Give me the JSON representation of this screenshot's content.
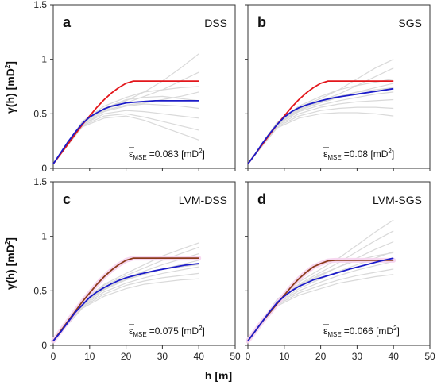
{
  "figure": {
    "ylabel": "γ(h) [mD²]",
    "ylabel_main": "γ(h) [mD",
    "ylabel_sup": "2",
    "ylabel_end": "]",
    "xlabel": "h [m]"
  },
  "chart_data": [
    {
      "type": "line",
      "panel": "a",
      "method": "DSS",
      "error": {
        "symbol": "ε",
        "sub": "MSE",
        "value": "=0.083",
        "unit_main": "[mD",
        "unit_sup": "2",
        "unit_end": "]"
      },
      "xlim": [
        0,
        50
      ],
      "ylim": [
        0,
        1.5
      ],
      "xticks": [
        "0",
        "10",
        "20",
        "30",
        "40",
        "50"
      ],
      "yticks": [
        "0",
        "0.5",
        "1",
        "1.5"
      ],
      "colors": {
        "reference": "#e3161b",
        "mean": "#1c1cc9",
        "realizations": "#d9d9d9"
      },
      "reference": {
        "x": [
          0,
          2,
          4,
          6,
          8,
          10,
          12,
          14,
          16,
          18,
          20,
          22,
          24,
          26,
          30,
          35,
          40
        ],
        "y": [
          0.04,
          0.13,
          0.22,
          0.31,
          0.4,
          0.48,
          0.56,
          0.63,
          0.69,
          0.74,
          0.78,
          0.8,
          0.8,
          0.8,
          0.8,
          0.8,
          0.8
        ]
      },
      "mean": {
        "x": [
          0,
          2,
          4,
          6,
          8,
          10,
          12,
          14,
          16,
          18,
          20,
          22,
          24,
          26,
          28,
          30,
          33,
          36,
          40
        ],
        "y": [
          0.04,
          0.14,
          0.24,
          0.33,
          0.41,
          0.47,
          0.51,
          0.545,
          0.57,
          0.585,
          0.6,
          0.605,
          0.61,
          0.615,
          0.62,
          0.62,
          0.62,
          0.62,
          0.62
        ]
      },
      "realizations": [
        {
          "x": [
            0,
            8,
            14,
            20,
            25,
            30,
            35,
            40
          ],
          "y": [
            0.04,
            0.42,
            0.55,
            0.62,
            0.7,
            0.8,
            0.92,
            1.05
          ]
        },
        {
          "x": [
            0,
            8,
            14,
            20,
            25,
            30,
            35,
            40
          ],
          "y": [
            0.04,
            0.41,
            0.54,
            0.6,
            0.66,
            0.72,
            0.8,
            0.88
          ]
        },
        {
          "x": [
            0,
            8,
            14,
            20,
            25,
            30,
            35,
            40
          ],
          "y": [
            0.04,
            0.42,
            0.53,
            0.58,
            0.6,
            0.63,
            0.66,
            0.7
          ]
        },
        {
          "x": [
            0,
            8,
            14,
            20,
            25,
            30,
            35,
            40
          ],
          "y": [
            0.04,
            0.4,
            0.52,
            0.57,
            0.59,
            0.58,
            0.57,
            0.55
          ]
        },
        {
          "x": [
            0,
            8,
            14,
            20,
            25,
            30,
            35,
            40
          ],
          "y": [
            0.04,
            0.4,
            0.5,
            0.53,
            0.52,
            0.5,
            0.48,
            0.46
          ]
        },
        {
          "x": [
            0,
            8,
            14,
            20,
            25,
            30,
            35,
            40
          ],
          "y": [
            0.04,
            0.39,
            0.48,
            0.5,
            0.47,
            0.43,
            0.39,
            0.35
          ]
        },
        {
          "x": [
            0,
            8,
            14,
            20,
            25,
            30,
            35,
            40
          ],
          "y": [
            0.04,
            0.38,
            0.46,
            0.48,
            0.44,
            0.38,
            0.32,
            0.26
          ]
        },
        {
          "x": [
            0,
            8,
            14,
            20,
            25,
            30,
            35,
            40
          ],
          "y": [
            0.04,
            0.43,
            0.57,
            0.65,
            0.7,
            0.72,
            0.74,
            0.75
          ]
        },
        {
          "x": [
            0,
            8,
            14,
            20,
            25,
            30,
            35,
            40
          ],
          "y": [
            0.04,
            0.41,
            0.55,
            0.63,
            0.65,
            0.66,
            0.64,
            0.62
          ]
        }
      ]
    },
    {
      "type": "line",
      "panel": "b",
      "method": "SGS",
      "error": {
        "symbol": "ε",
        "sub": "MSE",
        "value": "=0.08",
        "unit_main": "[mD",
        "unit_sup": "2",
        "unit_end": "]"
      },
      "xlim": [
        0,
        50
      ],
      "ylim": [
        0,
        1.5
      ],
      "xticks": [
        "0",
        "10",
        "20",
        "30",
        "40",
        "50"
      ],
      "yticks": [
        "0",
        "0.5",
        "1",
        "1.5"
      ],
      "colors": {
        "reference": "#e3161b",
        "mean": "#1c1cc9",
        "realizations": "#d9d9d9"
      },
      "reference": {
        "x": [
          0,
          2,
          4,
          6,
          8,
          10,
          12,
          14,
          16,
          18,
          20,
          22,
          24,
          26,
          30,
          35,
          40
        ],
        "y": [
          0.04,
          0.13,
          0.22,
          0.31,
          0.4,
          0.48,
          0.56,
          0.63,
          0.69,
          0.74,
          0.78,
          0.8,
          0.8,
          0.8,
          0.8,
          0.8,
          0.8
        ]
      },
      "mean": {
        "x": [
          0,
          2,
          4,
          6,
          8,
          10,
          12,
          14,
          16,
          18,
          20,
          24,
          28,
          32,
          36,
          40
        ],
        "y": [
          0.04,
          0.13,
          0.23,
          0.32,
          0.4,
          0.47,
          0.52,
          0.555,
          0.58,
          0.6,
          0.62,
          0.65,
          0.67,
          0.69,
          0.71,
          0.73
        ]
      },
      "realizations": [
        {
          "x": [
            0,
            8,
            14,
            20,
            25,
            30,
            35,
            40
          ],
          "y": [
            0.04,
            0.42,
            0.56,
            0.64,
            0.72,
            0.82,
            0.92,
            1.0
          ]
        },
        {
          "x": [
            0,
            8,
            14,
            20,
            25,
            30,
            35,
            40
          ],
          "y": [
            0.04,
            0.41,
            0.55,
            0.62,
            0.68,
            0.76,
            0.84,
            0.92
          ]
        },
        {
          "x": [
            0,
            8,
            14,
            20,
            25,
            30,
            35,
            40
          ],
          "y": [
            0.04,
            0.4,
            0.53,
            0.6,
            0.65,
            0.7,
            0.74,
            0.78
          ]
        },
        {
          "x": [
            0,
            8,
            14,
            20,
            25,
            30,
            35,
            40
          ],
          "y": [
            0.04,
            0.4,
            0.52,
            0.58,
            0.62,
            0.65,
            0.68,
            0.7
          ]
        },
        {
          "x": [
            0,
            8,
            14,
            20,
            25,
            30,
            35,
            40
          ],
          "y": [
            0.04,
            0.39,
            0.5,
            0.56,
            0.59,
            0.61,
            0.62,
            0.63
          ]
        },
        {
          "x": [
            0,
            8,
            14,
            20,
            25,
            30,
            35,
            40
          ],
          "y": [
            0.04,
            0.38,
            0.48,
            0.53,
            0.55,
            0.56,
            0.56,
            0.55
          ]
        },
        {
          "x": [
            0,
            8,
            14,
            20,
            25,
            30,
            35,
            40
          ],
          "y": [
            0.04,
            0.37,
            0.46,
            0.5,
            0.51,
            0.51,
            0.5,
            0.48
          ]
        },
        {
          "x": [
            0,
            8,
            14,
            20,
            25,
            30,
            35,
            40
          ],
          "y": [
            0.04,
            0.42,
            0.57,
            0.66,
            0.72,
            0.76,
            0.79,
            0.82
          ]
        },
        {
          "x": [
            0,
            8,
            14,
            20,
            25,
            30,
            35,
            40
          ],
          "y": [
            0.04,
            0.41,
            0.54,
            0.61,
            0.66,
            0.7,
            0.72,
            0.74
          ]
        }
      ]
    },
    {
      "type": "line",
      "panel": "c",
      "method": "LVM-DSS",
      "error": {
        "symbol": "ε",
        "sub": "MSE",
        "value": "=0.075",
        "unit_main": "[mD",
        "unit_sup": "2",
        "unit_end": "]"
      },
      "xlim": [
        0,
        50
      ],
      "ylim": [
        0,
        1.5
      ],
      "xticks": [
        "0",
        "10",
        "20",
        "30",
        "40",
        "50"
      ],
      "yticks": [
        "0",
        "0.5",
        "1",
        "1.5"
      ],
      "colors": {
        "reference": "#8b3a1a",
        "mean": "#1c1cc9",
        "realizations": "#d9d9d9",
        "band": "#f6d3ee"
      },
      "reference": {
        "x": [
          0,
          2,
          4,
          6,
          8,
          10,
          12,
          14,
          16,
          18,
          20,
          22,
          24,
          26,
          30,
          35,
          40
        ],
        "y": [
          0.04,
          0.13,
          0.22,
          0.31,
          0.4,
          0.48,
          0.56,
          0.63,
          0.69,
          0.74,
          0.78,
          0.8,
          0.8,
          0.8,
          0.8,
          0.8,
          0.8
        ]
      },
      "mean": {
        "x": [
          0,
          2,
          4,
          6,
          8,
          10,
          12,
          14,
          16,
          18,
          20,
          24,
          28,
          32,
          36,
          40
        ],
        "y": [
          0.04,
          0.12,
          0.21,
          0.3,
          0.37,
          0.44,
          0.49,
          0.53,
          0.565,
          0.595,
          0.62,
          0.655,
          0.685,
          0.71,
          0.735,
          0.75
        ]
      },
      "realizations": [
        {
          "x": [
            0,
            8,
            14,
            20,
            25,
            30,
            35,
            40
          ],
          "y": [
            0.04,
            0.4,
            0.56,
            0.66,
            0.74,
            0.82,
            0.88,
            0.94
          ]
        },
        {
          "x": [
            0,
            8,
            14,
            20,
            25,
            30,
            35,
            40
          ],
          "y": [
            0.04,
            0.39,
            0.55,
            0.64,
            0.71,
            0.78,
            0.84,
            0.9
          ]
        },
        {
          "x": [
            0,
            8,
            14,
            20,
            25,
            30,
            35,
            40
          ],
          "y": [
            0.04,
            0.38,
            0.53,
            0.62,
            0.68,
            0.74,
            0.79,
            0.84
          ]
        },
        {
          "x": [
            0,
            8,
            14,
            20,
            25,
            30,
            35,
            40
          ],
          "y": [
            0.04,
            0.37,
            0.51,
            0.6,
            0.65,
            0.7,
            0.74,
            0.78
          ]
        },
        {
          "x": [
            0,
            8,
            14,
            20,
            25,
            30,
            35,
            40
          ],
          "y": [
            0.04,
            0.36,
            0.49,
            0.57,
            0.62,
            0.66,
            0.69,
            0.72
          ]
        },
        {
          "x": [
            0,
            8,
            14,
            20,
            25,
            30,
            35,
            40
          ],
          "y": [
            0.04,
            0.35,
            0.47,
            0.55,
            0.59,
            0.62,
            0.64,
            0.66
          ]
        },
        {
          "x": [
            0,
            8,
            14,
            20,
            25,
            30,
            35,
            40
          ],
          "y": [
            0.04,
            0.34,
            0.45,
            0.52,
            0.56,
            0.58,
            0.6,
            0.61
          ]
        },
        {
          "x": [
            0,
            8,
            14,
            20,
            25,
            30,
            35,
            40
          ],
          "y": [
            0.04,
            0.38,
            0.52,
            0.61,
            0.66,
            0.7,
            0.72,
            0.74
          ]
        }
      ]
    },
    {
      "type": "line",
      "panel": "d",
      "method": "LVM-SGS",
      "error": {
        "symbol": "ε",
        "sub": "MSE",
        "value": "=0.066",
        "unit_main": "[mD",
        "unit_sup": "2",
        "unit_end": "]"
      },
      "xlim": [
        0,
        50
      ],
      "ylim": [
        0,
        1.5
      ],
      "xticks": [
        "0",
        "10",
        "20",
        "30",
        "40",
        "50"
      ],
      "yticks": [
        "0",
        "0.5",
        "1",
        "1.5"
      ],
      "colors": {
        "reference": "#8b3a1a",
        "mean": "#1c1cc9",
        "realizations": "#d9d9d9",
        "band": "#f6d3ee"
      },
      "reference": {
        "x": [
          0,
          2,
          4,
          6,
          8,
          10,
          12,
          14,
          16,
          18,
          20,
          22,
          24,
          26,
          30,
          35,
          40
        ],
        "y": [
          0.04,
          0.13,
          0.22,
          0.3,
          0.38,
          0.46,
          0.54,
          0.61,
          0.67,
          0.72,
          0.75,
          0.775,
          0.78,
          0.78,
          0.78,
          0.78,
          0.78
        ]
      },
      "mean": {
        "x": [
          0,
          2,
          4,
          6,
          8,
          10,
          12,
          14,
          16,
          18,
          20,
          24,
          28,
          32,
          36,
          40
        ],
        "y": [
          0.04,
          0.13,
          0.22,
          0.31,
          0.39,
          0.45,
          0.5,
          0.54,
          0.57,
          0.6,
          0.62,
          0.66,
          0.7,
          0.735,
          0.77,
          0.8
        ]
      },
      "realizations": [
        {
          "x": [
            0,
            8,
            14,
            20,
            25,
            30,
            35,
            40
          ],
          "y": [
            0.04,
            0.42,
            0.58,
            0.7,
            0.8,
            0.92,
            1.04,
            1.15
          ]
        },
        {
          "x": [
            0,
            8,
            14,
            20,
            25,
            30,
            35,
            40
          ],
          "y": [
            0.04,
            0.41,
            0.56,
            0.67,
            0.76,
            0.86,
            0.96,
            1.05
          ]
        },
        {
          "x": [
            0,
            8,
            14,
            20,
            25,
            30,
            35,
            40
          ],
          "y": [
            0.04,
            0.4,
            0.54,
            0.64,
            0.72,
            0.8,
            0.88,
            0.95
          ]
        },
        {
          "x": [
            0,
            8,
            14,
            20,
            25,
            30,
            35,
            40
          ],
          "y": [
            0.04,
            0.39,
            0.52,
            0.61,
            0.68,
            0.74,
            0.8,
            0.86
          ]
        },
        {
          "x": [
            0,
            8,
            14,
            20,
            25,
            30,
            35,
            40
          ],
          "y": [
            0.04,
            0.38,
            0.5,
            0.58,
            0.64,
            0.69,
            0.73,
            0.77
          ]
        },
        {
          "x": [
            0,
            8,
            14,
            20,
            25,
            30,
            35,
            40
          ],
          "y": [
            0.04,
            0.37,
            0.48,
            0.55,
            0.6,
            0.64,
            0.67,
            0.7
          ]
        },
        {
          "x": [
            0,
            8,
            14,
            20,
            25,
            30,
            35,
            40
          ],
          "y": [
            0.04,
            0.36,
            0.46,
            0.52,
            0.57,
            0.6,
            0.63,
            0.65
          ]
        },
        {
          "x": [
            0,
            8,
            14,
            20,
            25,
            30,
            35,
            40
          ],
          "y": [
            0.04,
            0.4,
            0.55,
            0.65,
            0.72,
            0.78,
            0.82,
            0.85
          ]
        }
      ]
    }
  ]
}
